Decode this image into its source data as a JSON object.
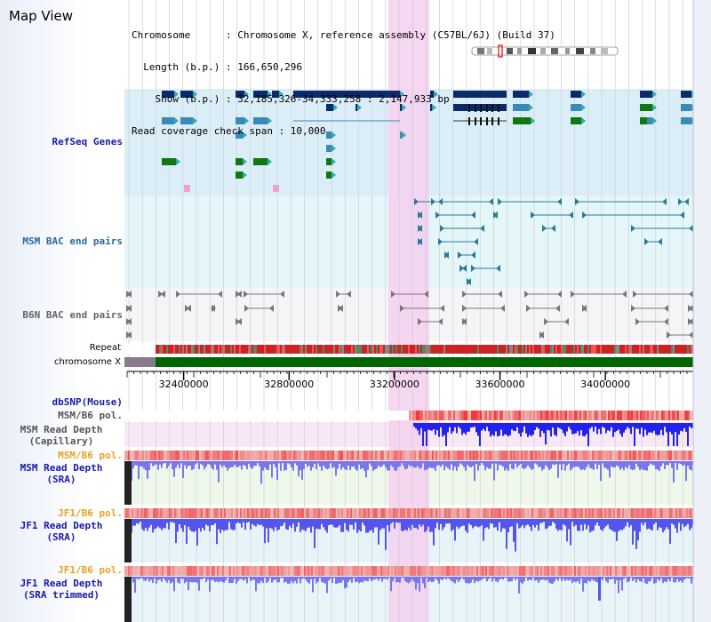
{
  "header": {
    "title": "Map View",
    "info_lines": [
      "Chromosome      : Chromosome X, reference assembly (C57BL/6J) (Build 37)",
      "  Length (b.p.) : 166,650,296",
      "    Show (b.p.) : 32,185,326-34,333,258 : 2,147,933 bp",
      "Read coverage check span : 10,000"
    ]
  },
  "tracks": {
    "refseq": {
      "label": "RefSeq Genes",
      "color": "#1a1aaa"
    },
    "msm_bac": {
      "label": "MSM BAC end pairs",
      "color": "#2a6a9a"
    },
    "b6n_bac": {
      "label": "B6N BAC end pairs",
      "color": "#666666"
    },
    "repeat": {
      "label": "Repeat"
    },
    "chromosome": {
      "label": "chromosome X"
    },
    "dbsnp": {
      "label": "dbSNP(Mouse)",
      "color": "#1a1aaa"
    },
    "msm_b6_pol_1": {
      "label": "MSM/B6 pol.",
      "color": "#555555"
    },
    "msm_depth_cap": {
      "label": "MSM Read Depth\n(Capillary)",
      "color": "#555555"
    },
    "msm_b6_pol_2": {
      "label": "MSM/B6 pol.",
      "color": "#e8a020"
    },
    "msm_depth_sra": {
      "label": "MSM Read Depth\n(SRA)",
      "color": "#1a1aaa"
    },
    "jf1_b6_pol_1": {
      "label": "JF1/B6 pol.",
      "color": "#e8a020"
    },
    "jf1_depth_sra": {
      "label": "JF1 Read Depth\n(SRA)",
      "color": "#1a1aaa"
    },
    "jf1_b6_pol_2": {
      "label": "JF1/B6 pol.",
      "color": "#e8a020"
    },
    "jf1_depth_trim": {
      "label": "JF1 Read Depth\n(SRA trimmed)",
      "color": "#1a1aaa"
    }
  },
  "axis": {
    "ticks": [
      {
        "value": 32400000,
        "label": "32400000"
      },
      {
        "value": 32800000,
        "label": "32800000"
      },
      {
        "value": 33200000,
        "label": "33200000"
      },
      {
        "value": 33600000,
        "label": "33600000"
      },
      {
        "value": 34000000,
        "label": "34000000"
      }
    ]
  },
  "colors": {
    "refseq_bg": "#dbeef8",
    "bac_bg": "#e4f6f8",
    "highlight": "#f5d0f0",
    "chromosome_band": "#006600",
    "depth_blue": "#3333ee",
    "pol_red": "#ee3333"
  }
}
